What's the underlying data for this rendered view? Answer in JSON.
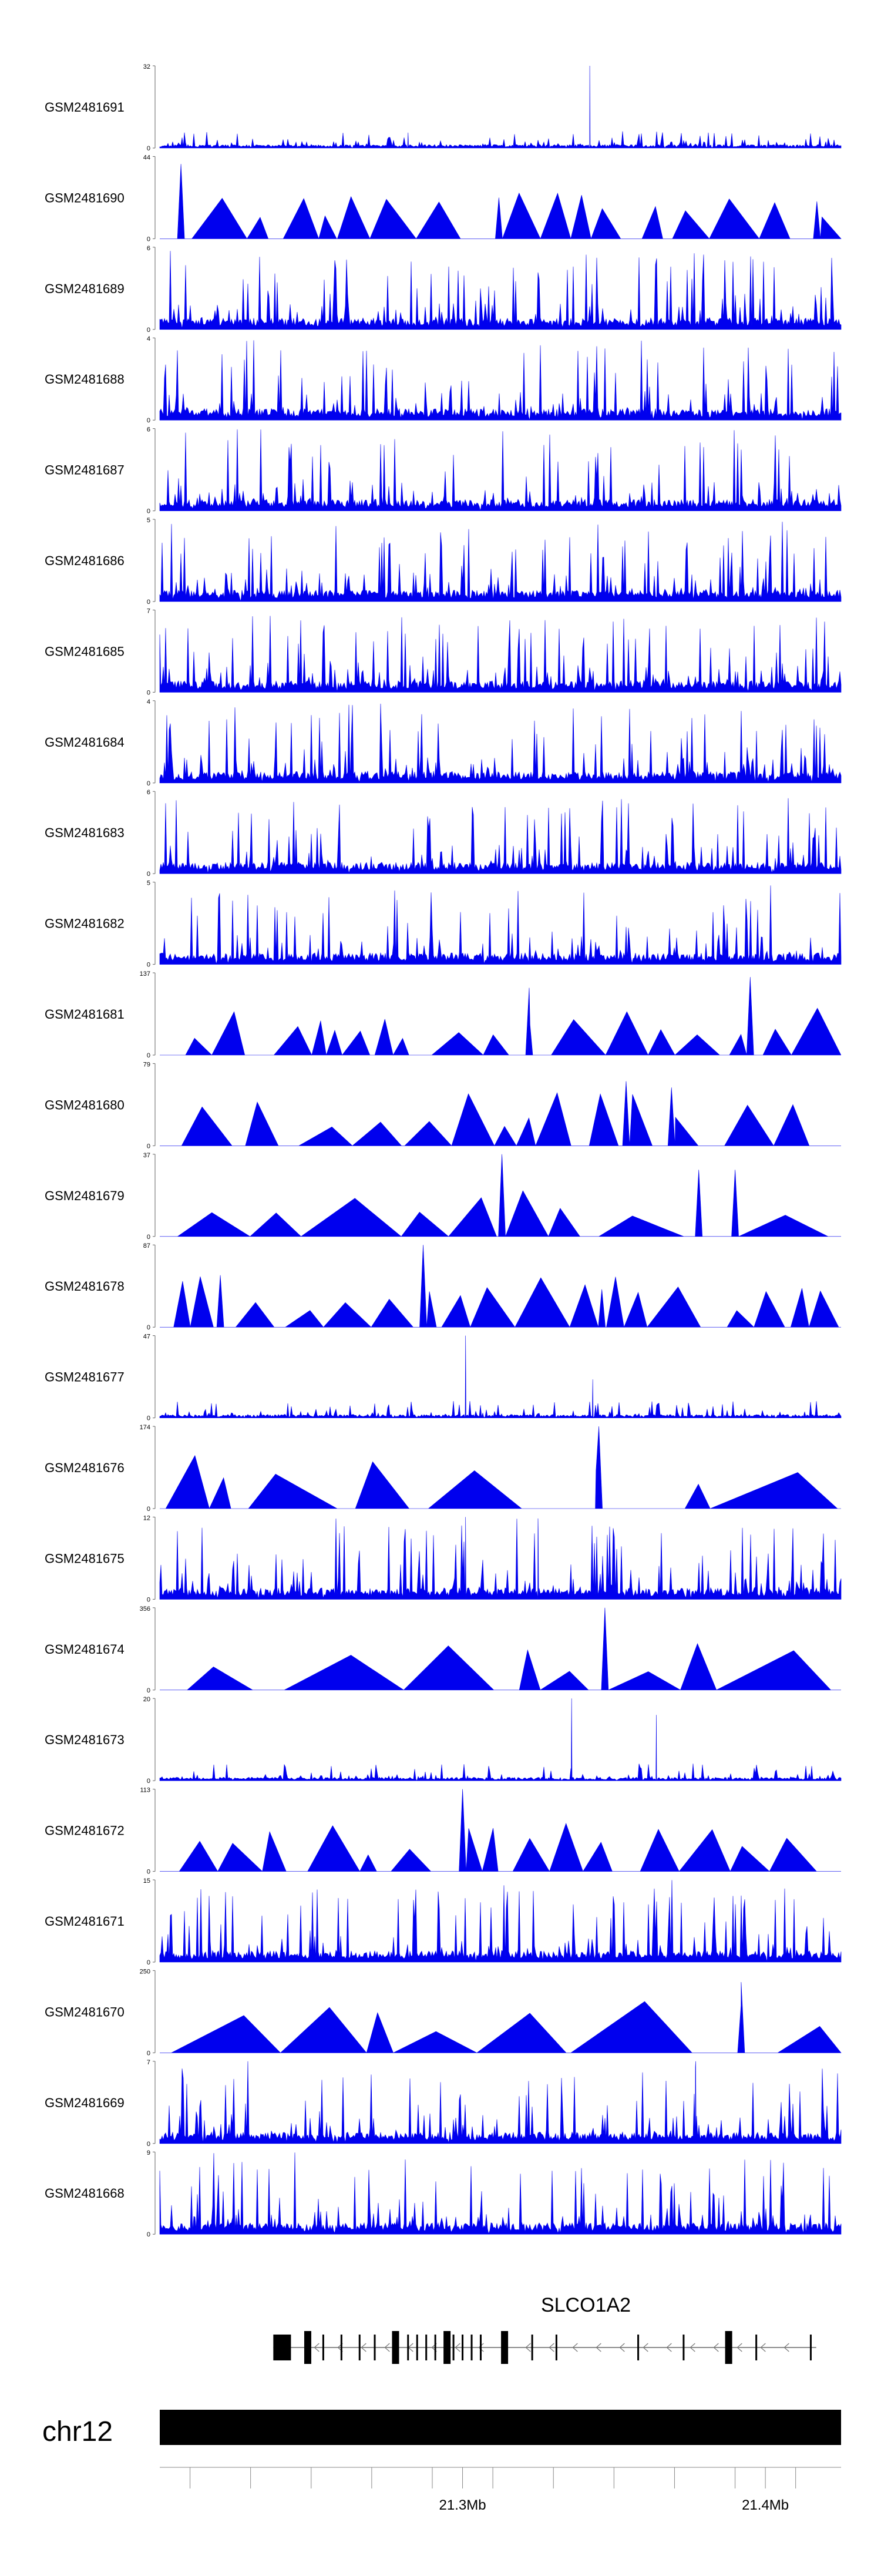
{
  "chart_data": {
    "type": "area",
    "title": "",
    "chromosome": "chr12",
    "region": {
      "start": 21200000,
      "end": 21425000
    },
    "track_color": "#0000ee",
    "tracks": [
      {
        "name": "GSM2481691",
        "ymax": 32,
        "pattern": "sparse",
        "spikes": [
          [
            21282000,
            6
          ],
          [
            21342000,
            32
          ]
        ]
      },
      {
        "name": "GSM2481690",
        "ymax": 44,
        "pattern": "triangles",
        "spikes": [
          [
            21207000,
            40
          ],
          [
            21312000,
            22
          ],
          [
            21417000,
            20
          ]
        ]
      },
      {
        "name": "GSM2481689",
        "ymax": 6,
        "pattern": "dense"
      },
      {
        "name": "GSM2481688",
        "ymax": 4,
        "pattern": "dense"
      },
      {
        "name": "GSM2481687",
        "ymax": 6,
        "pattern": "dense"
      },
      {
        "name": "GSM2481686",
        "ymax": 5,
        "pattern": "dense"
      },
      {
        "name": "GSM2481685",
        "ymax": 7,
        "pattern": "dense"
      },
      {
        "name": "GSM2481684",
        "ymax": 4,
        "pattern": "dense"
      },
      {
        "name": "GSM2481683",
        "ymax": 6,
        "pattern": "dense"
      },
      {
        "name": "GSM2481682",
        "ymax": 5,
        "pattern": "dense"
      },
      {
        "name": "GSM2481681",
        "ymax": 137,
        "pattern": "triangles",
        "spikes": [
          [
            21322000,
            112
          ],
          [
            21395000,
            130
          ]
        ]
      },
      {
        "name": "GSM2481680",
        "ymax": 79,
        "pattern": "triangles",
        "spikes": [
          [
            21354000,
            62
          ],
          [
            21369000,
            56
          ]
        ]
      },
      {
        "name": "GSM2481679",
        "ymax": 37,
        "pattern": "triangles",
        "spikes": [
          [
            21313000,
            37
          ],
          [
            21378000,
            30
          ],
          [
            21390000,
            30
          ]
        ]
      },
      {
        "name": "GSM2481678",
        "ymax": 87,
        "pattern": "triangles",
        "spikes": [
          [
            21220000,
            55
          ],
          [
            21287000,
            87
          ],
          [
            21346000,
            40
          ]
        ]
      },
      {
        "name": "GSM2481677",
        "ymax": 47,
        "pattern": "sparse",
        "spikes": [
          [
            21301000,
            47
          ],
          [
            21343000,
            22
          ]
        ]
      },
      {
        "name": "GSM2481676",
        "ymax": 174,
        "pattern": "triangles",
        "spikes": [
          [
            21345000,
            174
          ]
        ]
      },
      {
        "name": "GSM2481675",
        "ymax": 12,
        "pattern": "dense",
        "spikes": [
          [
            21301000,
            12
          ],
          [
            21325000,
            10
          ]
        ]
      },
      {
        "name": "GSM2481674",
        "ymax": 356,
        "pattern": "triangles",
        "spikes": [
          [
            21347000,
            356
          ]
        ]
      },
      {
        "name": "GSM2481673",
        "ymax": 20,
        "pattern": "sparse",
        "spikes": [
          [
            21336000,
            20
          ],
          [
            21364000,
            16
          ]
        ]
      },
      {
        "name": "GSM2481672",
        "ymax": 113,
        "pattern": "triangles",
        "spikes": [
          [
            21300000,
            113
          ]
        ]
      },
      {
        "name": "GSM2481671",
        "ymax": 15,
        "pattern": "dense"
      },
      {
        "name": "GSM2481670",
        "ymax": 250,
        "pattern": "triangles",
        "spikes": [
          [
            21392000,
            215
          ]
        ]
      },
      {
        "name": "GSM2481669",
        "ymax": 7,
        "pattern": "dense",
        "spikes": [
          [
            21377000,
            7
          ]
        ]
      },
      {
        "name": "GSM2481668",
        "ymax": 9,
        "pattern": "dense"
      }
    ],
    "gene": {
      "name": "SLCO1A2",
      "strand": "-",
      "exons": [
        21415000,
        21397000,
        21387000,
        21373000,
        21358000,
        21331000,
        21323000,
        21313000,
        21306000,
        21303000,
        21300000,
        21297000,
        21294000,
        21291000,
        21288000,
        21285000,
        21282000,
        21277000,
        21271000,
        21266000,
        21260000,
        21254000,
        21248000,
        21243000
      ]
    },
    "xaxis": {
      "ticks": [
        21210000,
        21230000,
        21250000,
        21270000,
        21290000,
        21310000,
        21330000,
        21350000,
        21370000,
        21390000,
        21410000
      ],
      "labels": [
        {
          "pos": 21300000,
          "text": "21.3Mb"
        },
        {
          "pos": 21400000,
          "text": "21.4Mb"
        }
      ]
    }
  }
}
